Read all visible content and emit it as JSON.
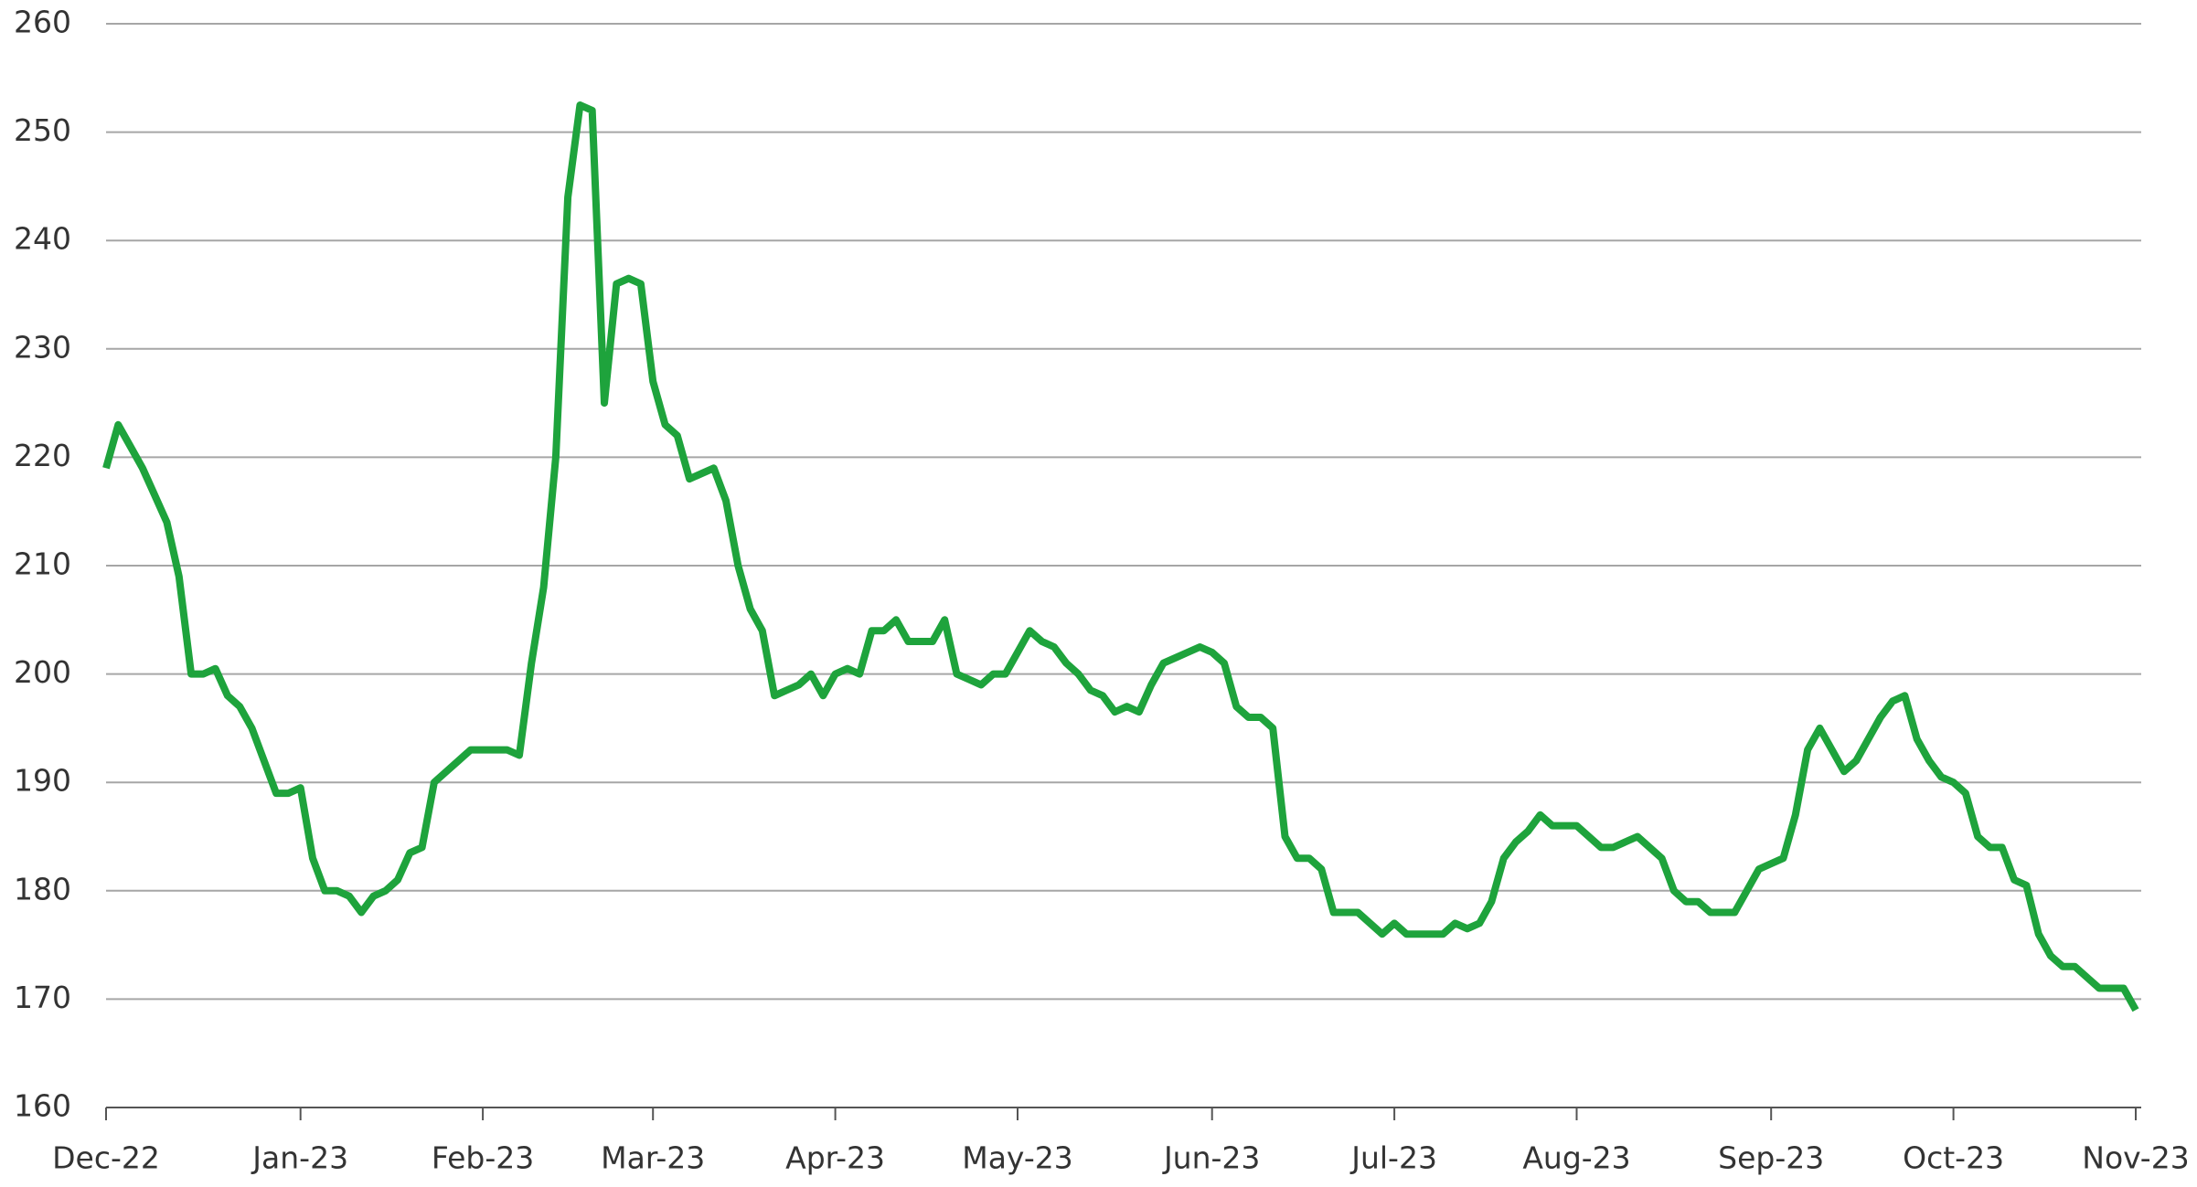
{
  "chart_data": {
    "type": "line",
    "categories": [
      "Dec-22",
      null,
      null,
      null,
      null,
      null,
      null,
      null,
      null,
      null,
      null,
      null,
      null,
      null,
      null,
      null,
      "Jan-23",
      null,
      null,
      null,
      null,
      null,
      null,
      null,
      null,
      null,
      null,
      null,
      null,
      null,
      null,
      "Feb-23",
      null,
      null,
      null,
      null,
      null,
      null,
      null,
      null,
      null,
      null,
      null,
      null,
      null,
      "Mar-23",
      null,
      null,
      null,
      null,
      null,
      null,
      null,
      null,
      null,
      null,
      null,
      null,
      null,
      null,
      "Apr-23",
      null,
      null,
      null,
      null,
      null,
      null,
      null,
      null,
      null,
      null,
      null,
      null,
      null,
      null,
      "May-23",
      null,
      null,
      null,
      null,
      null,
      null,
      null,
      null,
      null,
      null,
      null,
      null,
      null,
      null,
      null,
      "Jun-23",
      null,
      null,
      null,
      null,
      null,
      null,
      null,
      null,
      null,
      null,
      null,
      null,
      null,
      null,
      "Jul-23",
      null,
      null,
      null,
      null,
      null,
      null,
      null,
      null,
      null,
      null,
      null,
      null,
      null,
      null,
      "Aug-23",
      null,
      null,
      null,
      null,
      null,
      null,
      null,
      null,
      null,
      null,
      null,
      null,
      null,
      null,
      null,
      "Sep-23",
      null,
      null,
      null,
      null,
      null,
      null,
      null,
      null,
      null,
      null,
      null,
      null,
      null,
      null,
      "Oct-23",
      null,
      null,
      null,
      null,
      null,
      null,
      null,
      null,
      null,
      null,
      null,
      null,
      null,
      null,
      "Nov-23"
    ],
    "series": [
      {
        "color": "#1ea33c",
        "values": [
          219,
          223,
          221,
          219,
          216.5,
          214,
          209,
          200,
          200,
          200.5,
          198,
          197,
          195,
          192,
          189,
          189,
          189.5,
          183,
          180,
          180,
          179.5,
          178,
          179.5,
          180,
          181,
          183.5,
          184,
          190,
          191,
          192,
          193,
          193,
          193,
          193,
          192.5,
          201,
          208,
          220,
          244,
          252.5,
          252,
          225,
          236,
          236.5,
          236,
          227,
          223,
          222,
          218,
          218.5,
          219,
          216,
          210,
          206,
          204,
          198,
          198.5,
          199,
          200,
          198,
          200,
          200.5,
          200,
          204,
          204,
          205,
          203,
          203,
          203,
          205,
          200,
          199.5,
          199,
          200,
          200,
          202,
          204,
          203,
          202.5,
          201,
          200,
          198.5,
          198,
          196.5,
          197,
          196.5,
          199,
          201,
          201.5,
          202,
          202.5,
          202,
          201,
          197,
          196,
          196,
          195,
          185,
          183,
          183,
          182,
          178,
          178,
          178,
          177,
          176,
          177,
          176,
          176,
          176,
          176,
          177,
          176.5,
          177,
          179,
          183,
          184.5,
          185.5,
          187,
          186,
          186,
          186,
          185,
          184,
          184,
          184.5,
          185,
          184,
          183,
          180,
          179,
          179,
          178,
          178,
          178,
          180,
          182,
          182.5,
          183,
          187,
          193,
          195,
          193,
          191,
          192,
          194,
          196,
          197.5,
          198,
          194,
          192,
          190.5,
          190,
          189,
          185,
          184,
          184,
          181,
          180.5,
          176,
          174,
          173,
          173,
          172,
          171,
          171,
          171,
          169
        ]
      }
    ],
    "ylim": [
      160,
      260
    ],
    "yticks": [
      160,
      170,
      180,
      190,
      200,
      210,
      220,
      230,
      240,
      250,
      260
    ],
    "grid": true
  }
}
